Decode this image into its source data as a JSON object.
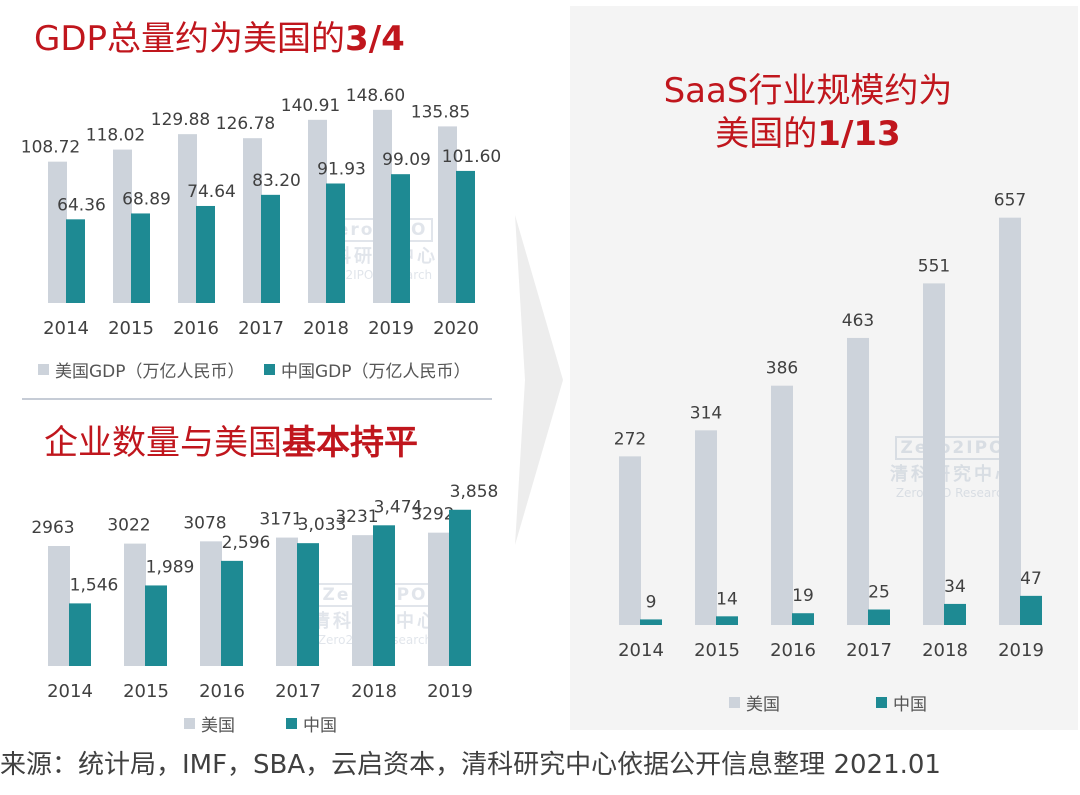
{
  "titles": {
    "gdp_text": "GDP总量约为美国的",
    "gdp_bold": "3/4",
    "saas_line1": "SaaS行业规模约为",
    "saas_line2_text": "美国的",
    "saas_line2_bold": "1/13",
    "firms_text": "企业数量与美国",
    "firms_bold": "基本持平"
  },
  "watermark": {
    "logo": "Zero2IPO",
    "cn": "清科研究中心",
    "en": "Zero2IPO Research"
  },
  "footer": "来源：统计局，IMF，SBA，云启资本，清科研究中心依据公开信息整理 2021.01",
  "colors": {
    "us": "#cdd3db",
    "cn": "#1e8a93",
    "title": "#c0161d"
  },
  "chart_data": [
    {
      "type": "bar",
      "title": "GDP总量约为美国的3/4",
      "categories": [
        "2014",
        "2015",
        "2016",
        "2017",
        "2018",
        "2019",
        "2020"
      ],
      "series": [
        {
          "name": "美国GDP（万亿人民币）",
          "values": [
            108.72,
            118.02,
            129.88,
            126.78,
            140.91,
            148.6,
            135.85
          ],
          "labels": [
            "108.72",
            "118.02",
            "129.88",
            "126.78",
            "140.91",
            "148.60",
            "135.85"
          ]
        },
        {
          "name": "中国GDP（万亿人民币）",
          "values": [
            64.36,
            68.89,
            74.64,
            83.2,
            91.93,
            99.09,
            101.6
          ],
          "labels": [
            "64.36",
            "68.89",
            "74.64",
            "83.20",
            "91.93",
            "99.09",
            "101.60"
          ]
        }
      ],
      "legend": "bottom"
    },
    {
      "type": "bar",
      "title": "企业数量与美国基本持平",
      "categories": [
        "2014",
        "2015",
        "2016",
        "2017",
        "2018",
        "2019"
      ],
      "series": [
        {
          "name": "美国",
          "values": [
            2963,
            3022,
            3078,
            3171,
            3231,
            3292
          ],
          "labels": [
            "2963",
            "3022",
            "3078",
            "3171",
            "3231",
            "3292"
          ]
        },
        {
          "name": "中国",
          "values": [
            1546,
            1989,
            2596,
            3033,
            3474,
            3858
          ],
          "labels": [
            "1,546",
            "1,989",
            "2,596",
            "3,033",
            "3,474",
            "3,858"
          ]
        }
      ],
      "legend": "bottom"
    },
    {
      "type": "bar",
      "title": "SaaS行业规模约为美国的1/13",
      "categories": [
        "2014",
        "2015",
        "2016",
        "2017",
        "2018",
        "2019"
      ],
      "series": [
        {
          "name": "美国",
          "values": [
            272,
            314,
            386,
            463,
            551,
            657
          ],
          "labels": [
            "272",
            "314",
            "386",
            "463",
            "551",
            "657"
          ]
        },
        {
          "name": "中国",
          "values": [
            9,
            14,
            19,
            25,
            34,
            47
          ],
          "labels": [
            "9",
            "14",
            "19",
            "25",
            "34",
            "47"
          ]
        }
      ],
      "legend": "bottom"
    }
  ]
}
